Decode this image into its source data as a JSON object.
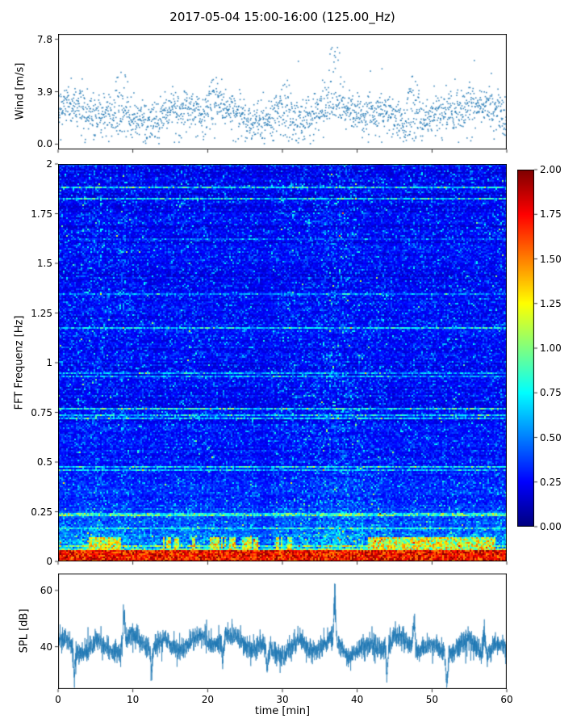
{
  "figure": {
    "title": "2017-05-04 15:00-16:00 (125.00_Hz)",
    "background": "#ffffff"
  },
  "chart_data": [
    {
      "id": "wind",
      "type": "scatter",
      "ylabel": "Wind [m/s]",
      "xlim": [
        0,
        60
      ],
      "ylim": [
        -0.4,
        8.2
      ],
      "yticks": {
        "values": [
          0.0,
          3.9,
          7.8
        ],
        "labels": [
          "0.0",
          "3.9",
          "7.8"
        ]
      },
      "marker_color": "#1f77b4",
      "n_points": 1900,
      "baseline_mean": 2.2,
      "baseline_std": 0.7,
      "spikes": [
        {
          "x": 8.5,
          "ymax": 5.9
        },
        {
          "x": 21,
          "ymax": 5.6
        },
        {
          "x": 30.5,
          "ymax": 5.0
        },
        {
          "x": 37,
          "ymax": 7.8
        },
        {
          "x": 47.5,
          "ymax": 5.3
        },
        {
          "x": 55,
          "ymax": 4.8
        }
      ],
      "seed": 42
    },
    {
      "id": "spectrogram",
      "type": "heatmap",
      "ylabel": "FFT Frequenz [Hz]",
      "xlim": [
        0,
        60
      ],
      "ylim": [
        0,
        2
      ],
      "yticks": {
        "values": [
          0,
          0.25,
          0.5,
          0.75,
          1,
          1.25,
          1.5,
          1.75,
          2
        ],
        "labels": [
          "0",
          "0.25",
          "0.5",
          "0.75",
          "1",
          "1.25",
          "1.5",
          "1.75",
          "2"
        ]
      },
      "colormap": "jet",
      "vmin": 0,
      "vmax": 2,
      "grid_cols": 278,
      "grid_rows": 246,
      "low_freq_energy_band_hz": 0.12,
      "seed": 7,
      "colorbar": {
        "ticks": {
          "values": [
            0,
            0.25,
            0.5,
            0.75,
            1,
            1.25,
            1.5,
            1.75,
            2
          ],
          "labels": [
            "0.00",
            "0.25",
            "0.50",
            "0.75",
            "1.00",
            "1.25",
            "1.50",
            "1.75",
            "2.00"
          ]
        }
      }
    },
    {
      "id": "spl",
      "type": "line",
      "ylabel": "SPL [dB]",
      "xlabel": "time [min]",
      "xlim": [
        0,
        60
      ],
      "ylim": [
        25,
        66
      ],
      "yticks": {
        "values": [
          40,
          60
        ],
        "labels": [
          "40",
          "60"
        ]
      },
      "xticks": {
        "values": [
          0,
          10,
          20,
          30,
          40,
          50,
          60
        ],
        "labels": [
          "0",
          "10",
          "20",
          "30",
          "40",
          "50",
          "60"
        ]
      },
      "line_color": "#1f77b4",
      "n_points": 3600,
      "baseline": 40,
      "events": [
        {
          "x": 8.8,
          "y": 53
        },
        {
          "x": 37,
          "y": 62
        },
        {
          "x": 47.6,
          "y": 52
        },
        {
          "x": 57,
          "y": 50
        },
        {
          "x": 2.2,
          "y": 28
        },
        {
          "x": 12.5,
          "y": 27
        },
        {
          "x": 22,
          "y": 31
        },
        {
          "x": 28,
          "y": 30
        },
        {
          "x": 44,
          "y": 29
        },
        {
          "x": 52,
          "y": 27
        }
      ],
      "seed": 99
    }
  ]
}
